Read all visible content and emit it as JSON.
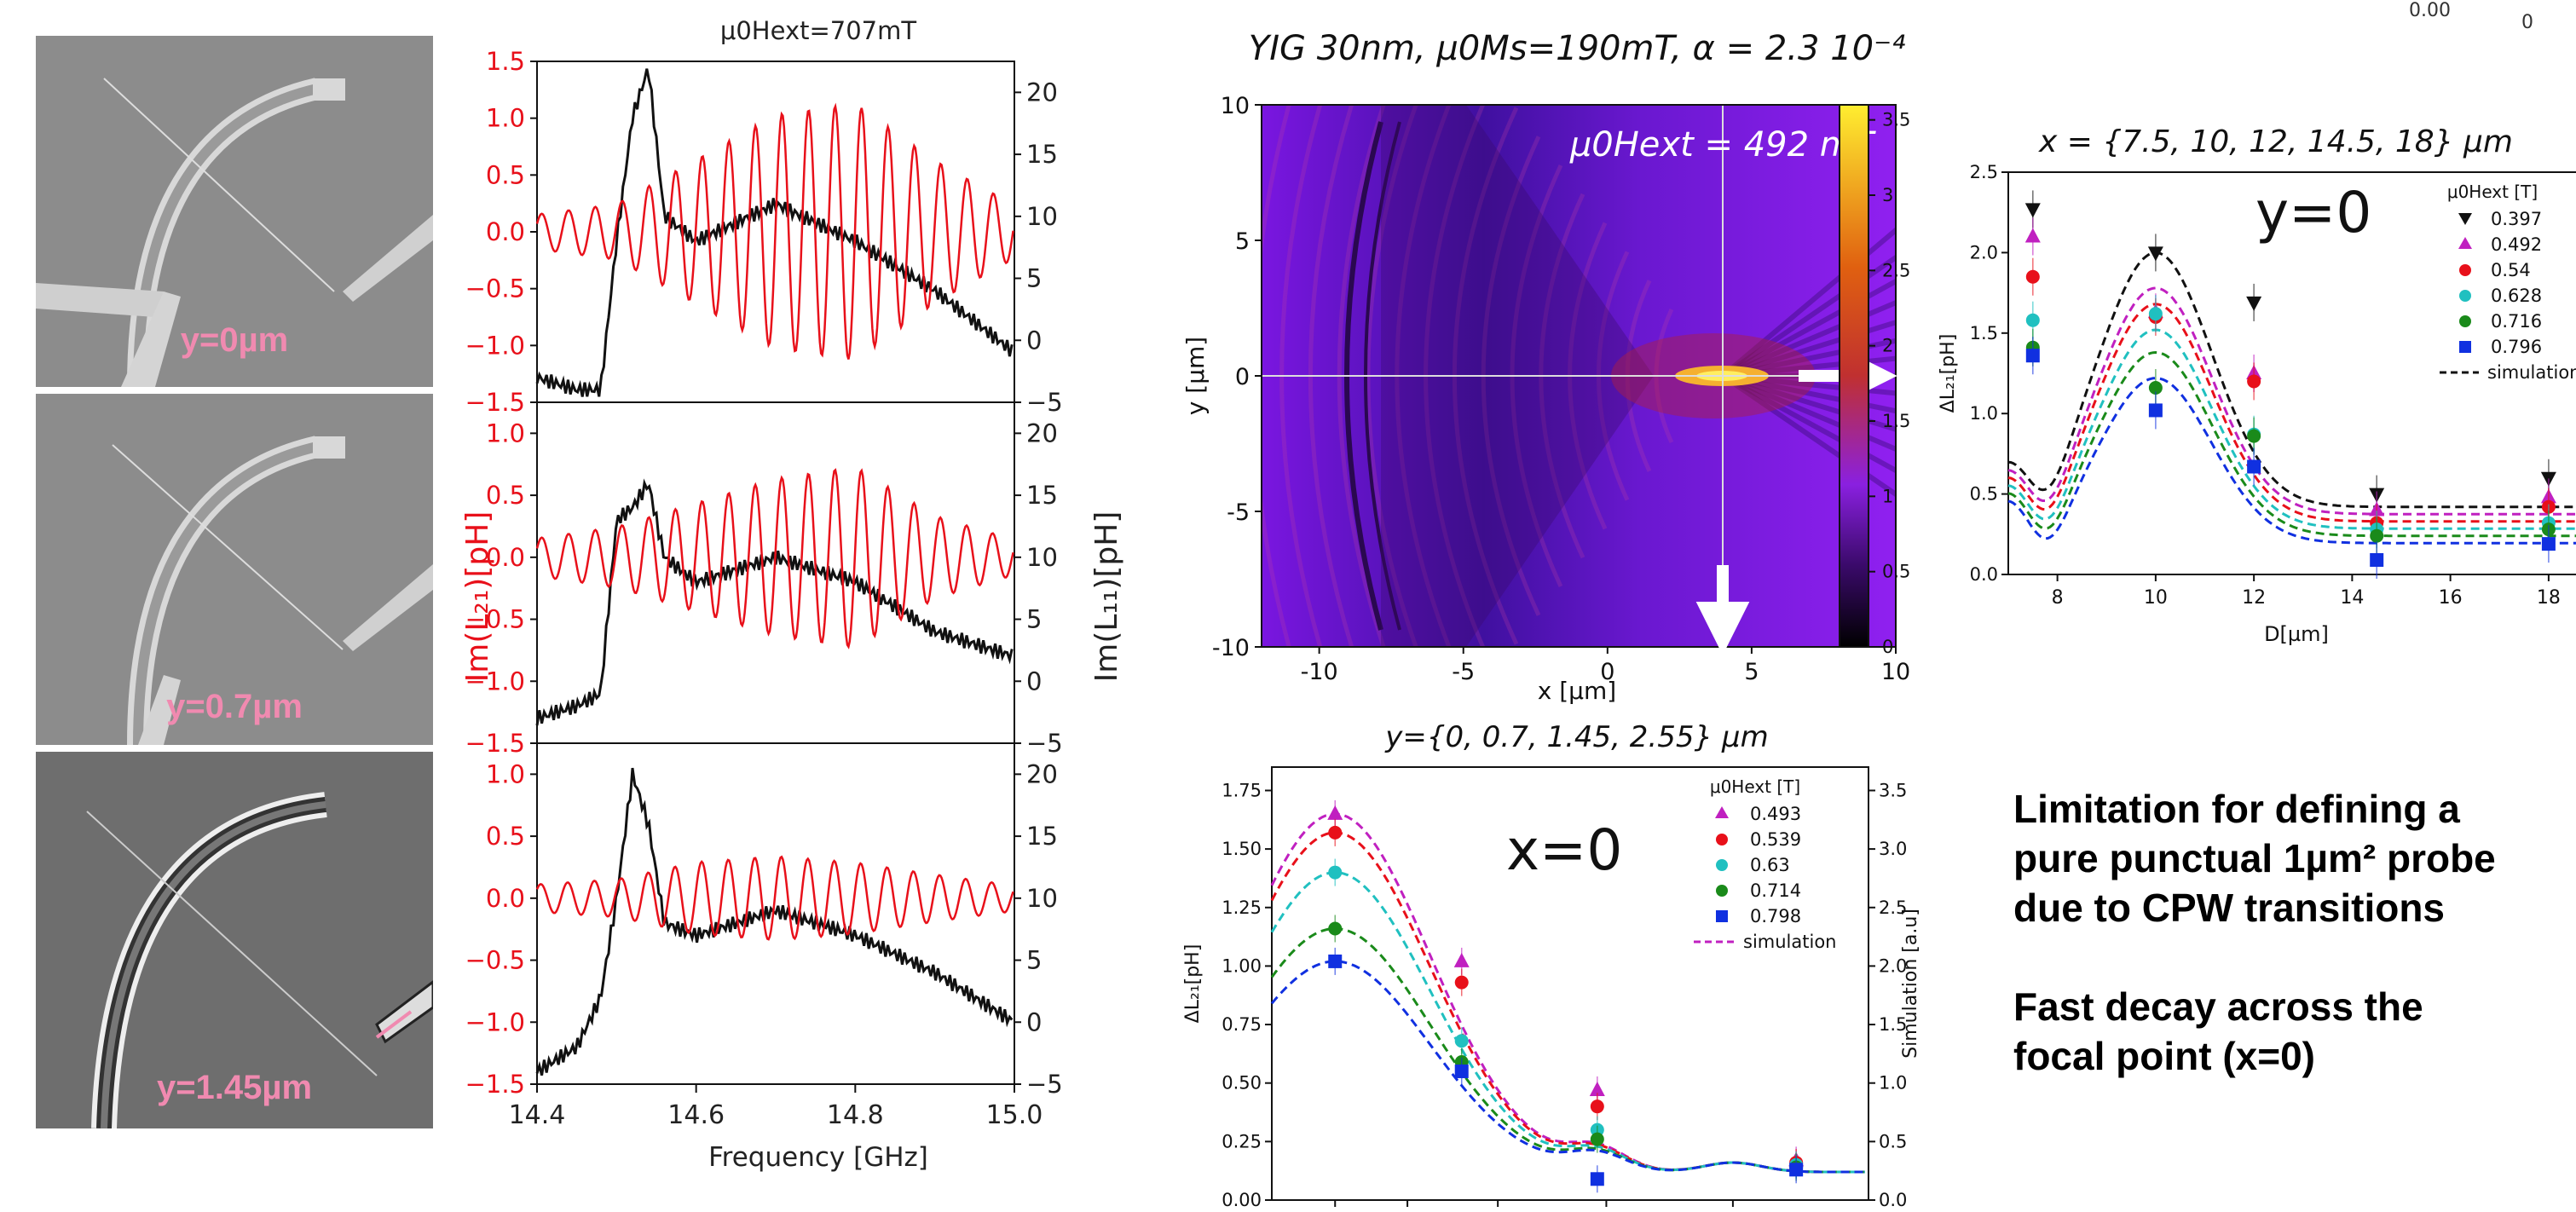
{
  "sem": {
    "labels": [
      "y=0µm",
      "y=0.7µm",
      "y=1.45µm"
    ]
  },
  "spectra": {
    "title": "μ0Hext=707mT",
    "xlabel": "Frequency [GHz]",
    "ylabel_left": "Im(L₂₁)[pH]",
    "ylabel_right": "Im(L₁₁)[pH]",
    "xticks": [
      "14.4",
      "14.6",
      "14.8",
      "15.0"
    ],
    "left_ticks": [
      [
        "1.5",
        "1.0",
        "0.5",
        "0.0",
        "−0.5",
        "−1.0",
        "−1.5"
      ],
      [
        "1.0",
        "0.5",
        "0.0",
        "−0.5",
        "−1.0",
        "−1.5"
      ],
      [
        "1.0",
        "0.5",
        "0.0",
        "−0.5",
        "−1.0",
        "−1.5"
      ]
    ],
    "right_ticks": [
      "20",
      "15",
      "10",
      "5",
      "0",
      "−5"
    ]
  },
  "map": {
    "title": "YIG 30nm, μ0Ms=190mT, α = 2.3 10⁻⁴",
    "annotation": "μ0Hext = 492 mT",
    "xlabel": "x [µm]",
    "ylabel": "y [µm]",
    "xticks": [
      "-10",
      "-5",
      "0",
      "5",
      "10"
    ],
    "yticks": [
      "10",
      "5",
      "0",
      "-5",
      "-10"
    ],
    "cbar_ticks": [
      "3.5",
      "3",
      "2.5",
      "2",
      "1.5",
      "1",
      "0.5",
      "0"
    ]
  },
  "ychart": {
    "title": "y={0, 0.7, 1.45, 2.55} µm",
    "big_label": "x=0",
    "ylabel": "ΔL₂₁[pH]",
    "ylabel_right": "Simulation [a.u]",
    "yticks": [
      "1.75",
      "1.50",
      "1.25",
      "1.00",
      "0.75",
      "0.50",
      "0.25",
      "0.00"
    ],
    "right_ticks": [
      "3.5",
      "3.0",
      "2.5",
      "2.0",
      "1.5",
      "1.0",
      "0.5",
      "0.0"
    ],
    "legend_title": "μ0Hext [T]",
    "legend": [
      "0.493",
      "0.539",
      "0.63",
      "0.714",
      "0.798"
    ],
    "legend_sim": "simulation"
  },
  "dchart": {
    "title": "x = {7.5, 10, 12, 14.5, 18} µm",
    "big_label": "y=0",
    "ylabel": "ΔL₂₁[pH]",
    "xlabel": "D[µm]",
    "xticks": [
      "8",
      "10",
      "12",
      "14",
      "16",
      "18"
    ],
    "yticks": [
      "2.5",
      "2.0",
      "1.5",
      "1.0",
      "0.5",
      "0.0"
    ],
    "legend_title": "μ0Hext [T]",
    "legend": [
      "0.397",
      "0.492",
      "0.54",
      "0.628",
      "0.716",
      "0.796"
    ],
    "legend_sim": "simulation"
  },
  "corner": {
    "tick_a": "0.00",
    "tick_b": "0"
  },
  "notes": {
    "line1": "Limitation for defining a",
    "line2": "pure punctual 1µm² probe",
    "line3": "due to CPW transitions",
    "line4": "Fast decay across the",
    "line5": "focal point (x=0)"
  },
  "colors": {
    "red": "#e8101a",
    "black": "#111111",
    "magenta": "#c020c0",
    "pink": "#f08ab0",
    "cyan": "#20c0c0",
    "green": "#1a8a1a",
    "blue": "#1030e0"
  },
  "chart_data": [
    {
      "type": "line",
      "title": "μ0Hext=707mT",
      "xlabel": "Frequency [GHz]",
      "ylabel": "Im(L₂₁)[pH] / Im(L₁₁)[pH]",
      "xlim": [
        14.4,
        15.0
      ],
      "panels": [
        "y=0µm",
        "y=0.7µm",
        "y=1.45µm"
      ],
      "series": [
        {
          "name": "Im(L₁₁) y=0µm",
          "x": [
            14.4,
            14.45,
            14.48,
            14.5,
            14.52,
            14.54,
            14.56,
            14.6,
            14.7,
            14.8,
            14.9,
            15.0
          ],
          "values": [
            -3,
            -4,
            -4,
            8,
            18,
            22,
            10,
            8,
            11,
            8,
            4,
            -1
          ]
        },
        {
          "name": "Im(L₂₁) y=0µm envelope",
          "x": [
            14.4,
            14.5,
            14.6,
            14.7,
            14.8,
            14.9,
            15.0
          ],
          "values": [
            0.1,
            0.2,
            0.6,
            1.0,
            1.1,
            0.6,
            0.2
          ]
        },
        {
          "name": "Im(L₁₁) y=0.7µm",
          "x": [
            14.4,
            14.45,
            14.48,
            14.5,
            14.52,
            14.54,
            14.56,
            14.6,
            14.7,
            14.8,
            14.9,
            15.0
          ],
          "values": [
            -3,
            -2,
            -1,
            13,
            14,
            16,
            10,
            8,
            10,
            8,
            4,
            2
          ]
        },
        {
          "name": "Im(L₂₁) y=0.7µm envelope",
          "x": [
            14.4,
            14.5,
            14.6,
            14.7,
            14.8,
            14.9,
            15.0
          ],
          "values": [
            0.1,
            0.2,
            0.4,
            0.6,
            0.7,
            0.3,
            0.1
          ]
        },
        {
          "name": "Im(L₁₁) y=1.45µm",
          "x": [
            14.4,
            14.45,
            14.48,
            14.5,
            14.52,
            14.54,
            14.56,
            14.6,
            14.7,
            14.8,
            14.9,
            15.0
          ],
          "values": [
            -4,
            -2,
            2,
            10,
            20,
            16,
            8,
            7,
            9,
            7,
            4,
            0
          ]
        },
        {
          "name": "Im(L₂₁) y=1.45µm envelope",
          "x": [
            14.4,
            14.5,
            14.6,
            14.7,
            14.8,
            14.9,
            15.0
          ],
          "values": [
            0.05,
            0.1,
            0.25,
            0.3,
            0.25,
            0.15,
            0.05
          ]
        }
      ]
    },
    {
      "type": "heatmap",
      "title": "YIG 30nm, μ0Ms=190mT, α = 2.3 10⁻⁴",
      "xlabel": "x [µm]",
      "ylabel": "y [µm]",
      "xlim": [
        -12,
        10
      ],
      "ylim": [
        -10,
        10
      ],
      "colorbar_range": [
        0,
        3.5
      ],
      "focal_point": {
        "x": 0,
        "y": 0,
        "peak": 3.5
      }
    },
    {
      "type": "scatter",
      "title": "y={0, 0.7, 1.45, 2.55} µm",
      "ylabel": "ΔL₂₁[pH]",
      "ylim": [
        0,
        1.85
      ],
      "right_axis": {
        "label": "Simulation [a.u]",
        "ylim": [
          0,
          3.7
        ]
      },
      "x": [
        0,
        0.7,
        1.45,
        2.55
      ],
      "series": [
        {
          "name": "0.493",
          "values": [
            1.65,
            1.02,
            0.47,
            0.17
          ]
        },
        {
          "name": "0.539",
          "values": [
            1.57,
            0.93,
            0.4,
            0.16
          ]
        },
        {
          "name": "0.63",
          "values": [
            1.4,
            0.68,
            0.3,
            0.15
          ]
        },
        {
          "name": "0.714",
          "values": [
            1.16,
            0.59,
            0.26,
            0.14
          ]
        },
        {
          "name": "0.798",
          "values": [
            1.02,
            0.55,
            0.09,
            0.13
          ]
        }
      ]
    },
    {
      "type": "scatter",
      "title": "x = {7.5, 10, 12, 14.5, 18} µm",
      "xlabel": "D[µm]",
      "ylabel": "ΔL₂₁[pH]",
      "xlim": [
        7,
        18.8
      ],
      "ylim": [
        0,
        2.5
      ],
      "x": [
        7.5,
        10,
        12,
        14.5,
        18
      ],
      "series": [
        {
          "name": "0.397",
          "values": [
            2.27,
            2.0,
            1.69,
            0.5,
            0.6
          ]
        },
        {
          "name": "0.492",
          "values": [
            2.1,
            1.63,
            1.25,
            0.4,
            0.48
          ]
        },
        {
          "name": "0.54",
          "values": [
            1.85,
            1.6,
            1.2,
            0.32,
            0.42
          ]
        },
        {
          "name": "0.628",
          "values": [
            1.58,
            1.62,
            0.87,
            0.28,
            0.32
          ]
        },
        {
          "name": "0.716",
          "values": [
            1.41,
            1.16,
            0.86,
            0.24,
            0.28
          ]
        },
        {
          "name": "0.796",
          "values": [
            1.36,
            1.02,
            0.67,
            0.09,
            0.19
          ]
        }
      ]
    }
  ]
}
